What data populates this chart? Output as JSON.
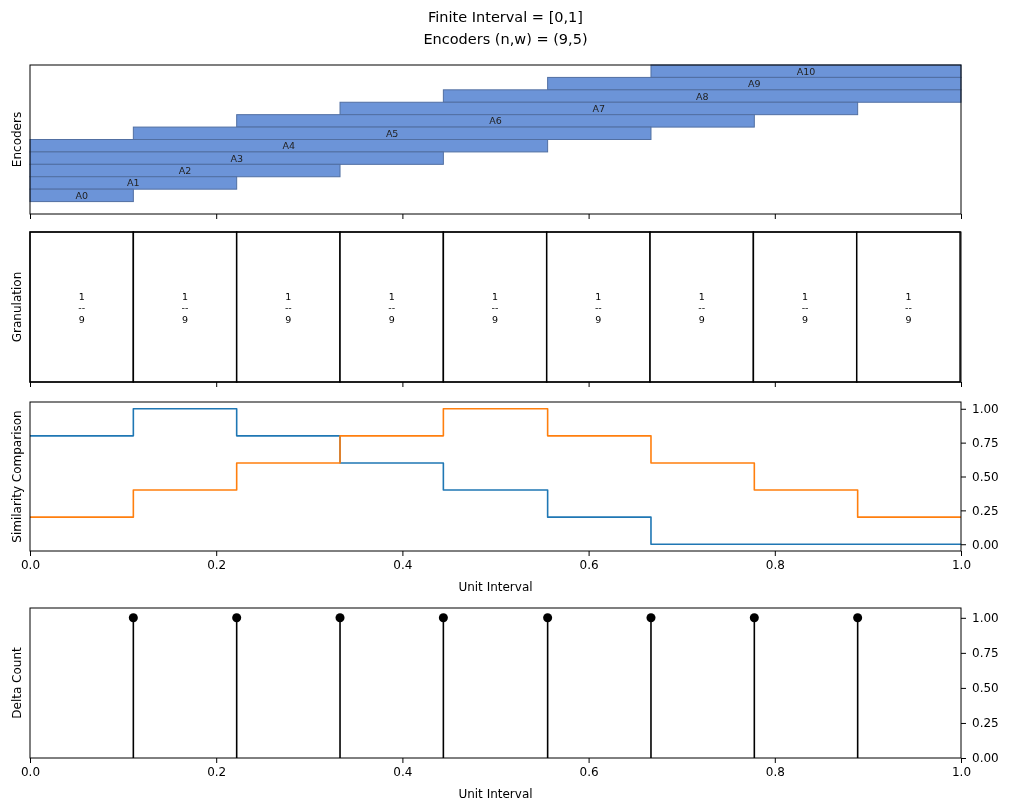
{
  "chart_data": [
    {
      "type": "bar",
      "title": "Finite Interval = [0,1]",
      "subtitle": "Encoders (n,w) = (9,5)",
      "ylabel": "Encoders",
      "orientation": "horizontal",
      "categories": [
        "A10",
        "A9",
        "A8",
        "A7",
        "A6",
        "A5",
        "A4",
        "A3",
        "A2",
        "A1",
        "A0"
      ],
      "base": [
        0.667,
        0.556,
        0.444,
        0.333,
        0.222,
        0.111,
        0,
        0,
        0,
        0,
        0
      ],
      "values": [
        0.333,
        0.444,
        0.556,
        0.556,
        0.556,
        0.556,
        0.556,
        0.444,
        0.333,
        0.222,
        0.111
      ],
      "color": "#6c94d8",
      "xlim": [
        0,
        1
      ],
      "xticks": [
        0,
        0.2,
        0.4,
        0.6,
        0.8,
        1
      ],
      "tick_labels": "y"
    },
    {
      "type": "bar",
      "ylabel": "Granulation",
      "orientation": "horizontal",
      "stacked": true,
      "categories": [
        null
      ],
      "series": [
        {
          "color": "#ffffff",
          "values": [
            0.111
          ]
        },
        {
          "color": "#ffffff",
          "values": [
            0.111
          ]
        },
        {
          "color": "#ffffff",
          "values": [
            0.111
          ]
        },
        {
          "color": "#ffffff",
          "values": [
            0.111
          ]
        },
        {
          "color": "#ffffff",
          "values": [
            0.111
          ]
        },
        {
          "color": "#ffffff",
          "values": [
            0.111
          ]
        },
        {
          "color": "#ffffff",
          "values": [
            0.111
          ]
        },
        {
          "color": "#ffffff",
          "values": [
            0.111
          ]
        },
        {
          "color": "#ffffff",
          "values": [
            0.111
          ]
        }
      ],
      "annotations": [
        "1\n--\n9",
        "1\n--\n9",
        "1\n--\n9",
        "1\n--\n9",
        "1\n--\n9",
        "1\n--\n9",
        "1\n--\n9",
        "1\n--\n9",
        "1\n--\n9"
      ],
      "xlim": [
        0,
        1
      ],
      "xticks": [
        0,
        0.2,
        0.4,
        0.6,
        0.8,
        1
      ],
      "tick_labels": false
    },
    {
      "type": "step",
      "xlabel": "Unit Interval",
      "ylabel": "Similarity Comparison",
      "series": [
        {
          "color": "#1f77b4",
          "x": [
            0,
            0.111,
            0.222,
            0.333,
            0.444,
            0.556,
            0.667,
            1
          ],
          "values": [
            0.8,
            1,
            0.8,
            0.6,
            0.4,
            0.2,
            0,
            0
          ]
        },
        {
          "color": "#ff7f0e",
          "x": [
            0,
            0.111,
            0.222,
            0.333,
            0.444,
            0.556,
            0.667,
            0.778,
            0.889,
            1
          ],
          "values": [
            0.2,
            0.4,
            0.6,
            0.8,
            1,
            0.8,
            0.6,
            0.4,
            0.2,
            0.2
          ]
        }
      ],
      "xlim": [
        0,
        1
      ],
      "xticks": [
        {
          "value": 0,
          "label": "0.0"
        },
        {
          "value": 0.2,
          "label": "0.2"
        },
        {
          "value": 0.4,
          "label": "0.4"
        },
        {
          "value": 0.6,
          "label": "0.6"
        },
        {
          "value": 0.8,
          "label": "0.8"
        },
        {
          "value": 1,
          "label": "1.0"
        }
      ],
      "ylim": [
        -0.05,
        1.05
      ],
      "yticks": [
        {
          "value": 0,
          "label": "0.00"
        },
        {
          "value": 0.25,
          "label": "0.25"
        },
        {
          "value": 0.5,
          "label": "0.50"
        },
        {
          "value": 0.75,
          "label": "0.75"
        },
        {
          "value": 1,
          "label": "1.00"
        }
      ]
    },
    {
      "type": "lollipop",
      "xlabel": "Unit Interval",
      "ylabel": "Delta Count",
      "x": [
        0.111,
        0.222,
        0.333,
        0.444,
        0.556,
        0.667,
        0.778,
        0.889
      ],
      "values": [
        1,
        1,
        1,
        1,
        1,
        1,
        1,
        1
      ],
      "color": "#000000",
      "marker": "circle",
      "xlim": [
        0,
        1
      ],
      "xticks": [
        {
          "value": 0,
          "label": "0.0"
        },
        {
          "value": 0.2,
          "label": "0.2"
        },
        {
          "value": 0.4,
          "label": "0.4"
        },
        {
          "value": 0.6,
          "label": "0.6"
        },
        {
          "value": 0.8,
          "label": "0.8"
        },
        {
          "value": 1,
          "label": "1.0"
        }
      ],
      "ylim": [
        0,
        1.07
      ],
      "yticks": [
        {
          "value": 0,
          "label": "0.00"
        },
        {
          "value": 0.25,
          "label": "0.25"
        },
        {
          "value": 0.5,
          "label": "0.50"
        },
        {
          "value": 0.75,
          "label": "0.75"
        },
        {
          "value": 1,
          "label": "1.00"
        }
      ]
    }
  ]
}
